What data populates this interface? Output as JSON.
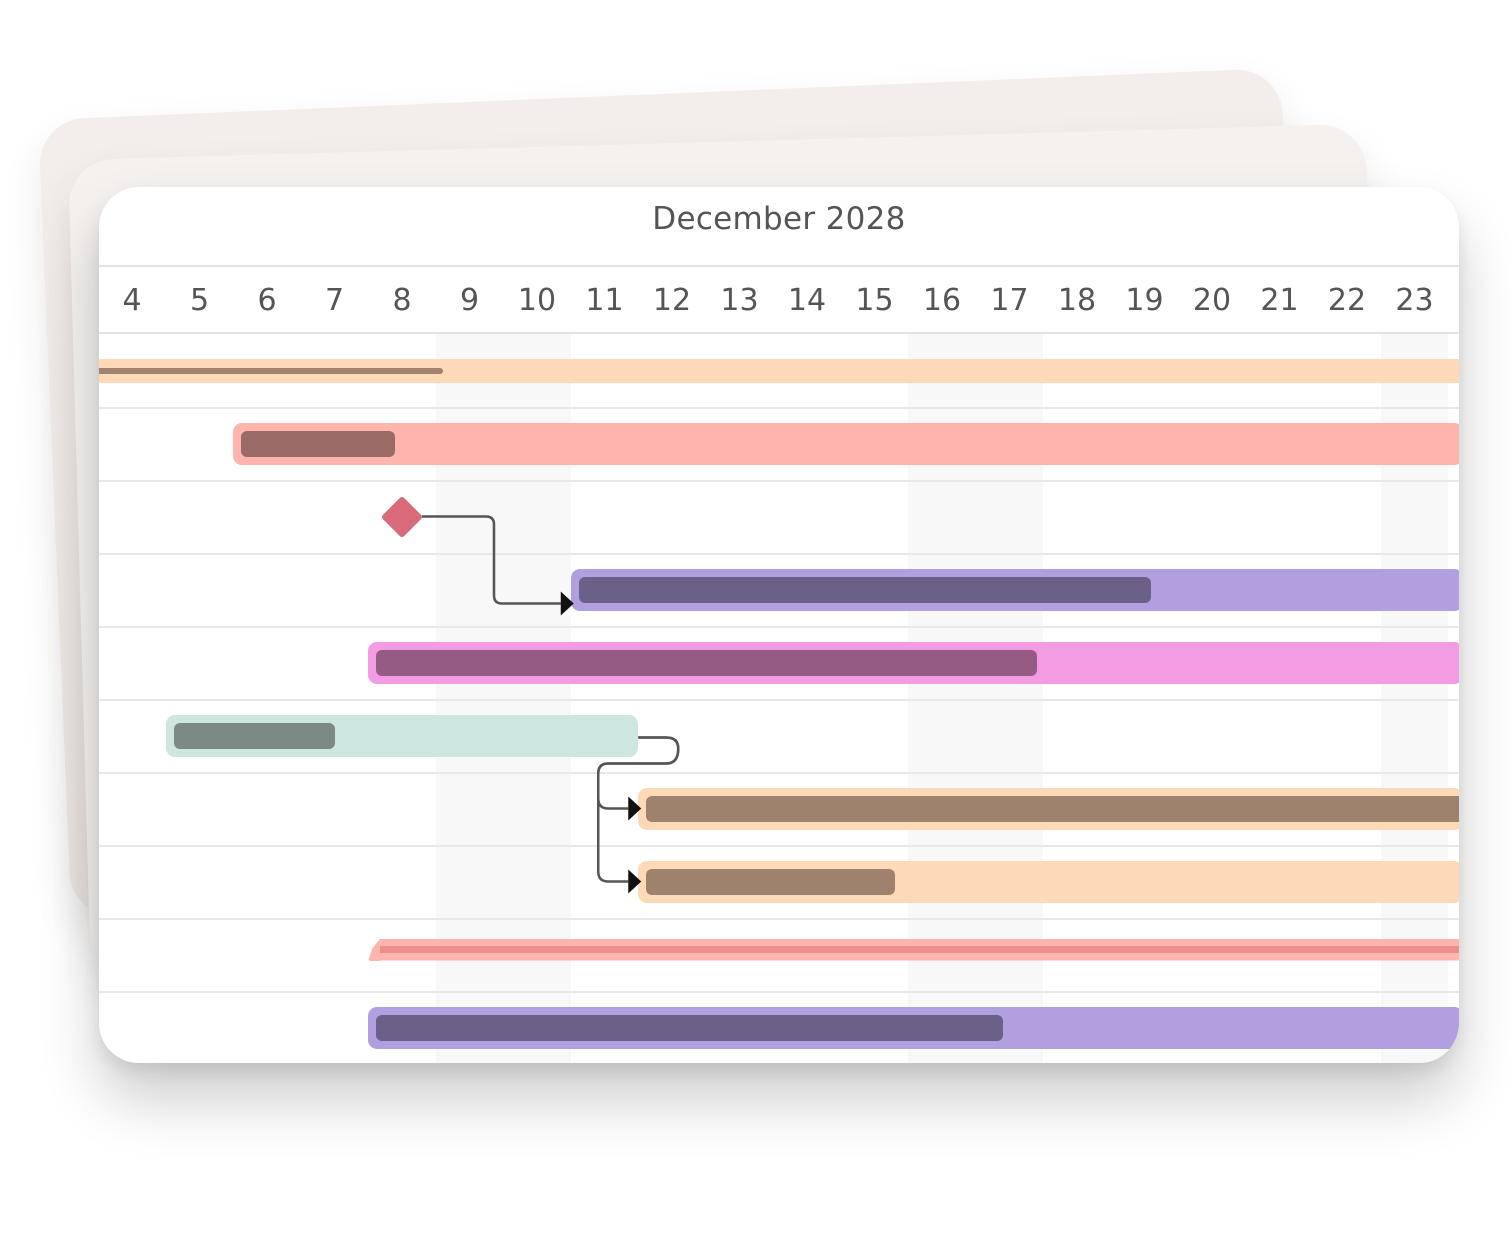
{
  "header": {
    "month_title": "December 2028"
  },
  "timeline": {
    "days": [
      "4",
      "5",
      "6",
      "7",
      "8",
      "9",
      "10",
      "11",
      "12",
      "13",
      "14",
      "15",
      "16",
      "17",
      "18",
      "19",
      "20",
      "21",
      "22",
      "23"
    ],
    "weekend_columns": [
      "9",
      "10",
      "16",
      "17",
      "23"
    ]
  },
  "tasks": [
    {
      "kind": "summary",
      "start_day": 3.5,
      "end_day": 24,
      "progress_end_day": 9.1,
      "color": "#fdd9b8",
      "progress_color": "#a0826d"
    },
    {
      "kind": "task",
      "start_day": 6,
      "end_day": 24,
      "progress_end_day": 8.4,
      "color": "#ffb4ae",
      "progress_color": "#9a6a66"
    },
    {
      "kind": "milestone",
      "day": 8,
      "color": "#d86a7a"
    },
    {
      "kind": "task",
      "start_day": 11,
      "end_day": 24,
      "progress_end_day": 19.6,
      "color": "#b19fdf",
      "progress_color": "#6b6087"
    },
    {
      "kind": "task",
      "start_day": 8,
      "end_day": 24,
      "progress_end_day": 17.9,
      "color": "#f39ce3",
      "progress_color": "#955b85"
    },
    {
      "kind": "task",
      "start_day": 5,
      "end_day": 12,
      "progress_end_day": 7.5,
      "color": "#cde6df",
      "progress_color": "#7c8a85"
    },
    {
      "kind": "task",
      "start_day": 12,
      "end_day": 24,
      "progress_end_day": 24,
      "color": "#fdd9b8",
      "progress_color": "#9f826d"
    },
    {
      "kind": "task",
      "start_day": 12,
      "end_day": 24,
      "progress_end_day": 15.8,
      "color": "#fdd9b8",
      "progress_color": "#9f826d"
    },
    {
      "kind": "summary-flag",
      "start_day": 8,
      "end_day": 24,
      "progress_end_day": 24,
      "color": "#ffb4ae",
      "progress_color": "#ee8f8f"
    },
    {
      "kind": "task",
      "start_day": 8,
      "end_day": 24,
      "progress_end_day": 17.4,
      "color": "#b19fdf",
      "progress_color": "#6b6087"
    }
  ],
  "dependencies": [
    {
      "from": 2,
      "to": 3
    },
    {
      "from": 5,
      "to": 6
    },
    {
      "from": 5,
      "to": 7
    }
  ]
}
